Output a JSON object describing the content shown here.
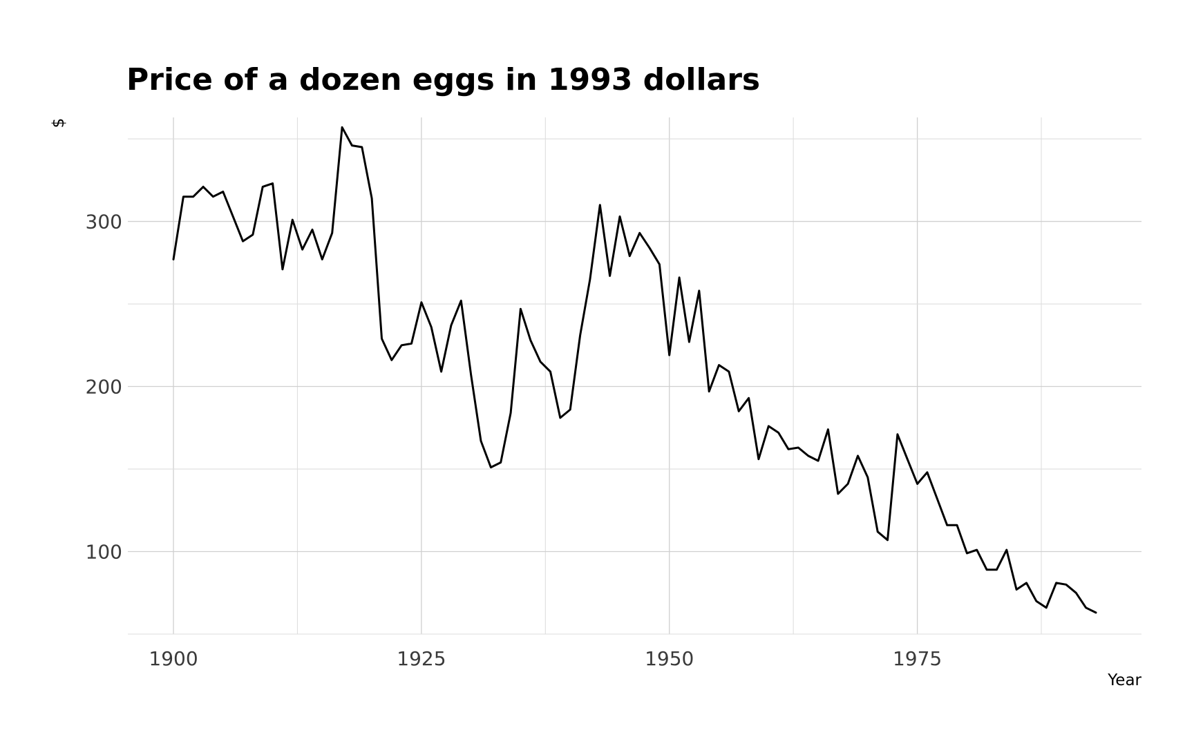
{
  "chart_data": {
    "type": "line",
    "title": "Price of a dozen eggs in 1993 dollars",
    "xlabel": "Year",
    "ylabel": "$",
    "xlim": [
      1895.4,
      1997.6
    ],
    "ylim": [
      50,
      363
    ],
    "x_ticks": [
      1900,
      1925,
      1950,
      1975
    ],
    "y_ticks": [
      100,
      200,
      300
    ],
    "grid": true,
    "legend": "none",
    "line_color": "#000000",
    "series": [
      {
        "x": [
          1900,
          1901,
          1902,
          1903,
          1904,
          1905,
          1906,
          1907,
          1908,
          1909,
          1910,
          1911,
          1912,
          1913,
          1914,
          1915,
          1916,
          1917,
          1918,
          1919,
          1920,
          1921,
          1922,
          1923,
          1924,
          1925,
          1926,
          1927,
          1928,
          1929,
          1930,
          1931,
          1932,
          1933,
          1934,
          1935,
          1936,
          1937,
          1938,
          1939,
          1940,
          1941,
          1942,
          1943,
          1944,
          1945,
          1946,
          1947,
          1948,
          1949,
          1950,
          1951,
          1952,
          1953,
          1954,
          1955,
          1956,
          1957,
          1958,
          1959,
          1960,
          1961,
          1962,
          1963,
          1964,
          1965,
          1966,
          1967,
          1968,
          1969,
          1970,
          1971,
          1972,
          1973,
          1974,
          1975,
          1976,
          1977,
          1978,
          1979,
          1980,
          1981,
          1982,
          1983,
          1984,
          1985,
          1986,
          1987,
          1988,
          1989,
          1990,
          1991,
          1992,
          1993
        ],
        "values": [
          277,
          315,
          315,
          321,
          315,
          318,
          303,
          288,
          292,
          321,
          323,
          271,
          301,
          283,
          295,
          277,
          293,
          357,
          346,
          345,
          314,
          229,
          216,
          225,
          226,
          251,
          236,
          209,
          237,
          252,
          207,
          167,
          151,
          154,
          184,
          247,
          228,
          215,
          209,
          181,
          186,
          231,
          265,
          310,
          267,
          303,
          279,
          293,
          284,
          274,
          219,
          266,
          227,
          258,
          197,
          213,
          209,
          185,
          193,
          156,
          176,
          172,
          162,
          163,
          158,
          155,
          174,
          135,
          141,
          158,
          145,
          112,
          107,
          171,
          156,
          141,
          148,
          132,
          116,
          116,
          99,
          101,
          89,
          89,
          101,
          77,
          81,
          70,
          66,
          81,
          80,
          75,
          66,
          63
        ]
      }
    ]
  }
}
